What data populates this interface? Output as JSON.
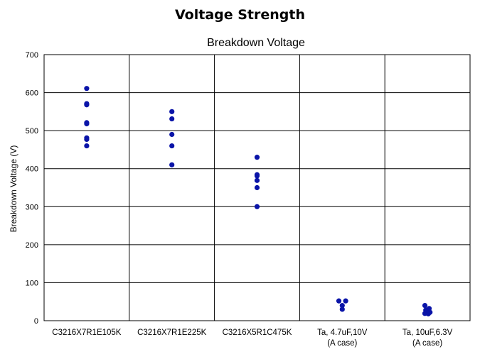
{
  "slide": {
    "title": "Voltage Strength"
  },
  "chart_data": {
    "type": "scatter",
    "title": "Breakdown Voltage",
    "xlabel": "",
    "ylabel": "Breakdown Voltage (V)",
    "ylim": [
      0,
      700
    ],
    "yticks": [
      0,
      100,
      200,
      300,
      400,
      500,
      600,
      700
    ],
    "grid": true,
    "categories": [
      [
        "C3216X7R1E105K"
      ],
      [
        "C3216X7R1E225K"
      ],
      [
        "C3216X5R1C475K"
      ],
      [
        "Ta, 4.7uF,10V",
        "(A case)"
      ],
      [
        "Ta, 10uF,6.3V",
        "(A case)"
      ]
    ],
    "point_color": "#0a14a8",
    "points": [
      {
        "category": 0,
        "y": 611
      },
      {
        "category": 0,
        "y": 571
      },
      {
        "category": 0,
        "y": 568
      },
      {
        "category": 0,
        "y": 521
      },
      {
        "category": 0,
        "y": 518
      },
      {
        "category": 0,
        "y": 481
      },
      {
        "category": 0,
        "y": 477
      },
      {
        "category": 0,
        "y": 460
      },
      {
        "category": 1,
        "y": 550
      },
      {
        "category": 1,
        "y": 531
      },
      {
        "category": 1,
        "y": 490
      },
      {
        "category": 1,
        "y": 460
      },
      {
        "category": 1,
        "y": 410
      },
      {
        "category": 2,
        "y": 430
      },
      {
        "category": 2,
        "y": 384
      },
      {
        "category": 2,
        "y": 381
      },
      {
        "category": 2,
        "y": 369
      },
      {
        "category": 2,
        "y": 350
      },
      {
        "category": 2,
        "y": 300
      },
      {
        "category": 3,
        "y": 52,
        "offset": -0.04
      },
      {
        "category": 3,
        "y": 52,
        "offset": 0.04
      },
      {
        "category": 3,
        "y": 40
      },
      {
        "category": 3,
        "y": 30
      },
      {
        "category": 4,
        "y": 40,
        "offset": -0.03
      },
      {
        "category": 4,
        "y": 32,
        "offset": 0.02
      },
      {
        "category": 4,
        "y": 28,
        "offset": -0.02
      },
      {
        "category": 4,
        "y": 22,
        "offset": 0.03
      },
      {
        "category": 4,
        "y": 19,
        "offset": -0.03
      },
      {
        "category": 4,
        "y": 18,
        "offset": 0.01
      }
    ]
  }
}
